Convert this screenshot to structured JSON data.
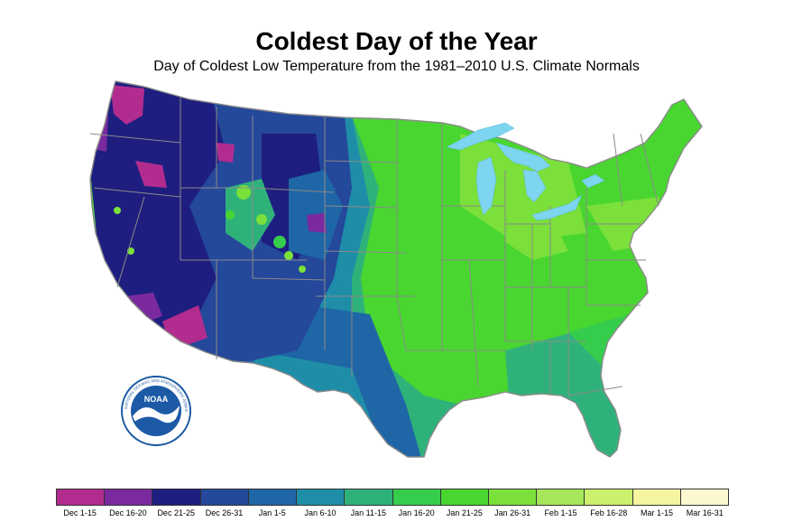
{
  "title": "Coldest Day of the Year",
  "subtitle": "Day of Coldest Low Temperature from the 1981–2010 U.S. Climate Normals",
  "logo": {
    "text": "NOAA",
    "ring_text": "NATIONAL OCEANIC AND ATMOSPHERIC ADMINISTRATION · U.S. DEPARTMENT OF COMMERCE"
  },
  "legend": [
    {
      "label": "Dec 1-15",
      "color": "#b12c8e"
    },
    {
      "label": "Dec 16-20",
      "color": "#7a2a9e"
    },
    {
      "label": "Dec 21-25",
      "color": "#1e1e80"
    },
    {
      "label": "Dec 26-31",
      "color": "#24489a"
    },
    {
      "label": "Jan 1-5",
      "color": "#1f66a6"
    },
    {
      "label": "Jan 6-10",
      "color": "#1e8ea8"
    },
    {
      "label": "Jan 11-15",
      "color": "#2fb27a"
    },
    {
      "label": "Jan 16-20",
      "color": "#36cc4c"
    },
    {
      "label": "Jan 21-25",
      "color": "#49d630"
    },
    {
      "label": "Jan 26-31",
      "color": "#7be03a"
    },
    {
      "label": "Feb 1-15",
      "color": "#a5e65a"
    },
    {
      "label": "Feb 16-28",
      "color": "#cbf06e"
    },
    {
      "label": "Mar 1-15",
      "color": "#f5f4a0"
    },
    {
      "label": "Mar 16-31",
      "color": "#fbf8cf"
    }
  ],
  "colors": {
    "lakes": "#7dd5f0",
    "state_lines": "#8a8a8a"
  }
}
